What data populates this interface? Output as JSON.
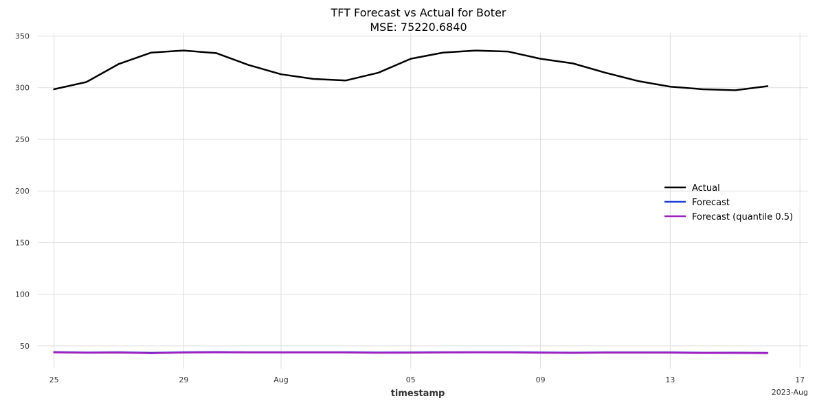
{
  "chart_data": {
    "type": "line",
    "title": "TFT Forecast vs Actual for Boter",
    "subtitle": "MSE: 75220.6840",
    "xlabel": "timestamp",
    "ylabel": "",
    "x_offset_label": "2023-Aug",
    "x_ticks": [
      {
        "date": "2023-07-25",
        "label": "25"
      },
      {
        "date": "2023-07-29",
        "label": "29"
      },
      {
        "date": "2023-08-01",
        "label": "Aug"
      },
      {
        "date": "2023-08-05",
        "label": "05"
      },
      {
        "date": "2023-08-09",
        "label": "09"
      },
      {
        "date": "2023-08-13",
        "label": "13"
      },
      {
        "date": "2023-08-17",
        "label": "17"
      }
    ],
    "y_ticks": [
      50,
      100,
      150,
      200,
      250,
      300,
      350
    ],
    "ylim": [
      28,
      353
    ],
    "xlim": [
      "2023-07-24 12:00",
      "2023-08-17 06:00"
    ],
    "grid": true,
    "legend_position": "right",
    "x": [
      "2023-07-25",
      "2023-07-26",
      "2023-07-27",
      "2023-07-28",
      "2023-07-29",
      "2023-07-30",
      "2023-07-31",
      "2023-08-01",
      "2023-08-02",
      "2023-08-03",
      "2023-08-04",
      "2023-08-05",
      "2023-08-06",
      "2023-08-07",
      "2023-08-08",
      "2023-08-09",
      "2023-08-10",
      "2023-08-11",
      "2023-08-12",
      "2023-08-13",
      "2023-08-14",
      "2023-08-15",
      "2023-08-16"
    ],
    "series": [
      {
        "name": "Actual",
        "color": "#000000",
        "values": [
          298.5,
          305.5,
          323,
          334,
          336,
          333.5,
          322,
          313,
          308.5,
          307,
          314.5,
          328,
          334,
          336,
          335,
          328,
          323.5,
          314.5,
          306.5,
          301,
          298.5,
          297.5,
          301.5
        ]
      },
      {
        "name": "Forecast",
        "color": "#1f3fdb",
        "values": [
          44,
          43.5,
          43.8,
          43.2,
          43.8,
          44,
          43.8,
          43.8,
          43.8,
          43.8,
          43.5,
          43.6,
          43.8,
          43.9,
          43.9,
          43.6,
          43.4,
          43.7,
          43.7,
          43.7,
          43.3,
          43.4,
          43.2
        ]
      },
      {
        "name": "Forecast (quantile 0.5)",
        "color": "#a020c0",
        "values": [
          43.8,
          43.4,
          43.6,
          42.9,
          43.5,
          43.8,
          43.6,
          43.6,
          43.6,
          43.6,
          43.3,
          43.4,
          43.6,
          43.7,
          43.7,
          43.4,
          43.2,
          43.5,
          43.5,
          43.5,
          43.1,
          43.2,
          43
        ]
      }
    ],
    "band": {
      "color": "#a020c0",
      "lower": [
        42.5,
        42.3,
        42.1,
        42.2,
        42.5,
        42.8,
        42.6,
        42.6,
        42.6,
        42.6,
        42.4,
        42.5,
        42.6,
        42.7,
        42.6,
        42.3,
        42.1,
        42.3,
        42.3,
        42.2,
        42,
        41.8,
        41.6
      ],
      "upper": [
        45,
        44.8,
        45,
        44.6,
        45,
        45.2,
        45.1,
        45.1,
        45.1,
        45.1,
        44.9,
        45,
        45.1,
        45.2,
        45.2,
        44.9,
        44.7,
        44.9,
        44.9,
        44.9,
        44.6,
        44.6,
        44.5
      ]
    }
  }
}
